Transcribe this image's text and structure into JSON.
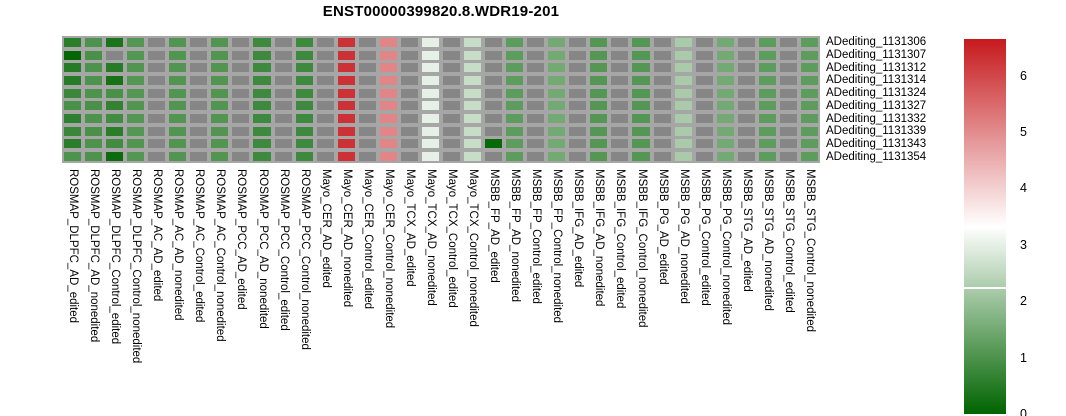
{
  "title": "ENST00000399820.8.WDR19-201",
  "chart_data": {
    "type": "heatmap",
    "title": "ENST00000399820.8.WDR19-201",
    "rows": [
      "ADediting_1131306",
      "ADediting_1131307",
      "ADediting_1131312",
      "ADediting_1131314",
      "ADediting_1131324",
      "ADediting_1131327",
      "ADediting_1131332",
      "ADediting_1131339",
      "ADediting_1131343",
      "ADediting_1131354"
    ],
    "columns": [
      {
        "label": "ROSMAP_DLPFC_AD_edited",
        "values": [
          0.55,
          0.05,
          0.5,
          0.5,
          0.75,
          0.95,
          0.6,
          0.75,
          0.55,
          1.0
        ]
      },
      {
        "label": "ROSMAP_DLPFC_AD_nonedited",
        "values": [
          1.0,
          0.95,
          1.0,
          1.0,
          1.0,
          0.95,
          1.0,
          0.95,
          1.0,
          1.0
        ]
      },
      {
        "label": "ROSMAP_DLPFC_Control_edited",
        "values": [
          0.35,
          null,
          0.5,
          0.3,
          0.95,
          0.65,
          0.85,
          0.55,
          0.85,
          0.15
        ]
      },
      {
        "label": "ROSMAP_DLPFC_Control_nonedited",
        "values": [
          1.1,
          1.1,
          1.05,
          1.1,
          1.1,
          1.05,
          1.1,
          1.1,
          1.05,
          1.1
        ]
      },
      {
        "label": "ROSMAP_AC_AD_edited",
        "values": [
          null,
          null,
          null,
          null,
          null,
          null,
          null,
          null,
          null,
          null
        ]
      },
      {
        "label": "ROSMAP_AC_AD_nonedited",
        "values": [
          1.05,
          1.05,
          1.05,
          1.05,
          1.05,
          1.05,
          1.05,
          1.05,
          1.05,
          1.05
        ]
      },
      {
        "label": "ROSMAP_AC_Control_edited",
        "values": [
          null,
          null,
          null,
          null,
          null,
          null,
          null,
          null,
          null,
          null
        ]
      },
      {
        "label": "ROSMAP_AC_Control_nonedited",
        "values": [
          1.05,
          1.05,
          1.05,
          1.05,
          1.05,
          1.05,
          1.05,
          1.05,
          1.05,
          1.05
        ]
      },
      {
        "label": "ROSMAP_PCC_AD_edited",
        "values": [
          null,
          null,
          null,
          null,
          null,
          null,
          null,
          null,
          null,
          null
        ]
      },
      {
        "label": "ROSMAP_PCC_AD_nonedited",
        "values": [
          0.8,
          0.8,
          0.8,
          0.8,
          0.8,
          0.8,
          0.8,
          0.8,
          0.8,
          0.8
        ]
      },
      {
        "label": "ROSMAP_PCC_Control_edited",
        "values": [
          null,
          null,
          null,
          null,
          null,
          null,
          null,
          null,
          null,
          null
        ]
      },
      {
        "label": "ROSMAP_PCC_Control_nonedited",
        "values": [
          0.8,
          0.8,
          0.8,
          0.8,
          0.8,
          0.8,
          0.8,
          0.8,
          0.8,
          0.8
        ]
      },
      {
        "label": "Mayo_CER_AD_edited",
        "values": [
          null,
          null,
          null,
          null,
          null,
          null,
          null,
          null,
          null,
          null
        ]
      },
      {
        "label": "Mayo_CER_AD_nonedited",
        "values": [
          6.3,
          6.3,
          6.3,
          6.3,
          6.3,
          6.3,
          6.3,
          6.3,
          6.3,
          6.3
        ]
      },
      {
        "label": "Mayo_CER_Control_edited",
        "values": [
          null,
          null,
          null,
          null,
          null,
          null,
          null,
          null,
          null,
          null
        ]
      },
      {
        "label": "Mayo_CER_Control_nonedited",
        "values": [
          5.1,
          5.1,
          5.1,
          5.1,
          5.1,
          5.1,
          5.1,
          5.1,
          5.1,
          5.1
        ]
      },
      {
        "label": "Mayo_TCX_AD_edited",
        "values": [
          null,
          null,
          null,
          null,
          null,
          null,
          null,
          null,
          null,
          null
        ]
      },
      {
        "label": "Mayo_TCX_AD_nonedited",
        "values": [
          3.0,
          3.0,
          3.0,
          3.0,
          3.0,
          3.0,
          3.0,
          3.0,
          3.0,
          3.0
        ]
      },
      {
        "label": "Mayo_TCX_Control_edited",
        "values": [
          null,
          null,
          null,
          null,
          null,
          null,
          null,
          null,
          null,
          null
        ]
      },
      {
        "label": "Mayo_TCX_Control_nonedited",
        "values": [
          2.6,
          2.6,
          2.6,
          2.6,
          2.6,
          2.6,
          2.6,
          2.6,
          2.6,
          2.6
        ]
      },
      {
        "label": "MSBB_FP_AD_edited",
        "values": [
          null,
          null,
          null,
          null,
          null,
          null,
          null,
          null,
          0.1,
          null
        ]
      },
      {
        "label": "MSBB_FP_AD_nonedited",
        "values": [
          1.2,
          1.2,
          1.2,
          1.2,
          1.2,
          1.2,
          1.2,
          1.2,
          1.2,
          1.2
        ]
      },
      {
        "label": "MSBB_FP_Control_edited",
        "values": [
          null,
          null,
          null,
          null,
          null,
          null,
          null,
          null,
          null,
          null
        ]
      },
      {
        "label": "MSBB_FP_Control_nonedited",
        "values": [
          1.5,
          1.5,
          1.5,
          1.5,
          1.5,
          1.5,
          1.5,
          1.5,
          1.5,
          1.5
        ]
      },
      {
        "label": "MSBB_IFG_AD_edited",
        "values": [
          null,
          null,
          null,
          null,
          null,
          null,
          null,
          null,
          null,
          null
        ]
      },
      {
        "label": "MSBB_IFG_AD_nonedited",
        "values": [
          1.1,
          1.1,
          1.1,
          1.1,
          1.1,
          1.1,
          1.1,
          1.1,
          1.1,
          1.1
        ]
      },
      {
        "label": "MSBB_IFG_Control_edited",
        "values": [
          null,
          null,
          null,
          null,
          null,
          null,
          null,
          null,
          null,
          null
        ]
      },
      {
        "label": "MSBB_IFG_Control_nonedited",
        "values": [
          1.1,
          1.1,
          1.1,
          1.1,
          1.1,
          1.1,
          1.1,
          1.1,
          1.1,
          1.1
        ]
      },
      {
        "label": "MSBB_PG_AD_edited",
        "values": [
          null,
          null,
          null,
          null,
          null,
          null,
          null,
          null,
          null,
          null
        ]
      },
      {
        "label": "MSBB_PG_AD_nonedited",
        "values": [
          2.2,
          2.2,
          2.2,
          2.2,
          2.2,
          2.2,
          2.2,
          2.2,
          2.2,
          2.2
        ]
      },
      {
        "label": "MSBB_PG_Control_edited",
        "values": [
          null,
          null,
          null,
          null,
          null,
          null,
          null,
          null,
          null,
          null
        ]
      },
      {
        "label": "MSBB_PG_Control_nonedited",
        "values": [
          1.5,
          1.5,
          1.5,
          1.5,
          1.5,
          1.5,
          1.5,
          1.5,
          1.5,
          1.5
        ]
      },
      {
        "label": "MSBB_STG_AD_edited",
        "values": [
          null,
          null,
          null,
          null,
          null,
          null,
          null,
          null,
          null,
          null
        ]
      },
      {
        "label": "MSBB_STG_AD_nonedited",
        "values": [
          1.2,
          1.2,
          1.2,
          1.2,
          1.2,
          1.2,
          1.2,
          1.2,
          1.2,
          1.2
        ]
      },
      {
        "label": "MSBB_STG_Control_edited",
        "values": [
          null,
          null,
          null,
          null,
          null,
          null,
          null,
          null,
          null,
          null
        ]
      },
      {
        "label": "MSBB_STG_Control_nonedited",
        "values": [
          1.2,
          1.2,
          1.2,
          1.2,
          1.2,
          1.2,
          1.2,
          1.2,
          1.2,
          1.2
        ]
      }
    ],
    "colorscale": {
      "vmin": 0,
      "vmid": 3.32,
      "vmax": 6.65,
      "low": "#006400",
      "mid": "#ffffff",
      "high": "#c61a1d",
      "na": "#868686",
      "gap": "#a6a6a6"
    },
    "colorbar": {
      "ticks": [
        6,
        5,
        4,
        3,
        2,
        1,
        0
      ],
      "break_value": 2.25,
      "position": "right"
    },
    "legend_position": "right",
    "grid": false
  }
}
